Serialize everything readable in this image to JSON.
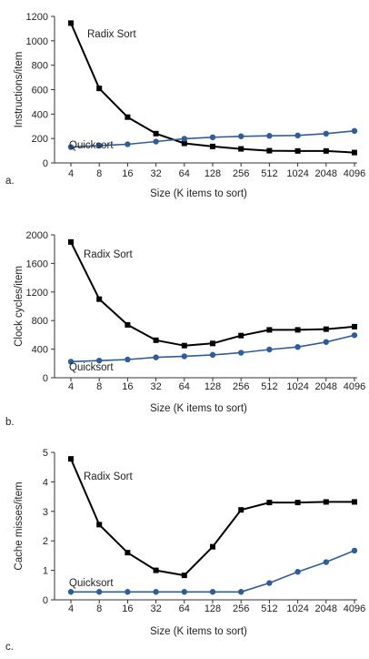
{
  "chart_data": [
    {
      "panel_label": "a.",
      "type": "line",
      "categories": [
        "4",
        "8",
        "16",
        "32",
        "64",
        "128",
        "256",
        "512",
        "1024",
        "2048",
        "4096"
      ],
      "xlabel": "Size (K items to sort)",
      "ylabel": "Instructions/item",
      "ylim": [
        0,
        1200
      ],
      "yticks": [
        0,
        200,
        400,
        600,
        800,
        1000,
        1200
      ],
      "grid": false,
      "series": [
        {
          "name": "Radix Sort",
          "color": "#000000",
          "marker": "square",
          "values": [
            1145,
            610,
            375,
            240,
            160,
            135,
            115,
            100,
            98,
            98,
            85
          ]
        },
        {
          "name": "Quicksort",
          "color": "#2f5d9b",
          "marker": "circle",
          "values": [
            130,
            142,
            153,
            175,
            198,
            210,
            218,
            222,
            225,
            240,
            262
          ]
        }
      ]
    },
    {
      "panel_label": "b.",
      "type": "line",
      "categories": [
        "4",
        "8",
        "16",
        "32",
        "64",
        "128",
        "256",
        "512",
        "1024",
        "2048",
        "4096"
      ],
      "xlabel": "Size (K items to sort)",
      "ylabel": "Clock cycles/item",
      "ylim": [
        0,
        2000
      ],
      "yticks": [
        0,
        400,
        800,
        1200,
        1600,
        2000
      ],
      "grid": false,
      "series": [
        {
          "name": "Radix Sort",
          "color": "#000000",
          "marker": "square",
          "values": [
            1900,
            1100,
            740,
            525,
            450,
            480,
            590,
            670,
            670,
            680,
            715
          ]
        },
        {
          "name": "Quicksort",
          "color": "#2f5d9b",
          "marker": "circle",
          "values": [
            225,
            240,
            255,
            285,
            300,
            320,
            350,
            395,
            430,
            500,
            595
          ]
        }
      ]
    },
    {
      "panel_label": "c.",
      "type": "line",
      "categories": [
        "4",
        "8",
        "16",
        "32",
        "64",
        "128",
        "256",
        "512",
        "1024",
        "2048",
        "4096"
      ],
      "xlabel": "Size (K items to sort)",
      "ylabel": "Cache misses/item",
      "ylim": [
        0,
        5
      ],
      "yticks": [
        0,
        1,
        2,
        3,
        4,
        5
      ],
      "grid": false,
      "series": [
        {
          "name": "Radix Sort",
          "color": "#000000",
          "marker": "square",
          "values": [
            4.78,
            2.55,
            1.6,
            1.0,
            0.83,
            1.8,
            3.05,
            3.3,
            3.3,
            3.32,
            3.32
          ]
        },
        {
          "name": "Quicksort",
          "color": "#2f5d9b",
          "marker": "circle",
          "values": [
            0.27,
            0.27,
            0.27,
            0.27,
            0.27,
            0.27,
            0.27,
            0.57,
            0.95,
            1.28,
            1.67
          ]
        }
      ]
    }
  ]
}
